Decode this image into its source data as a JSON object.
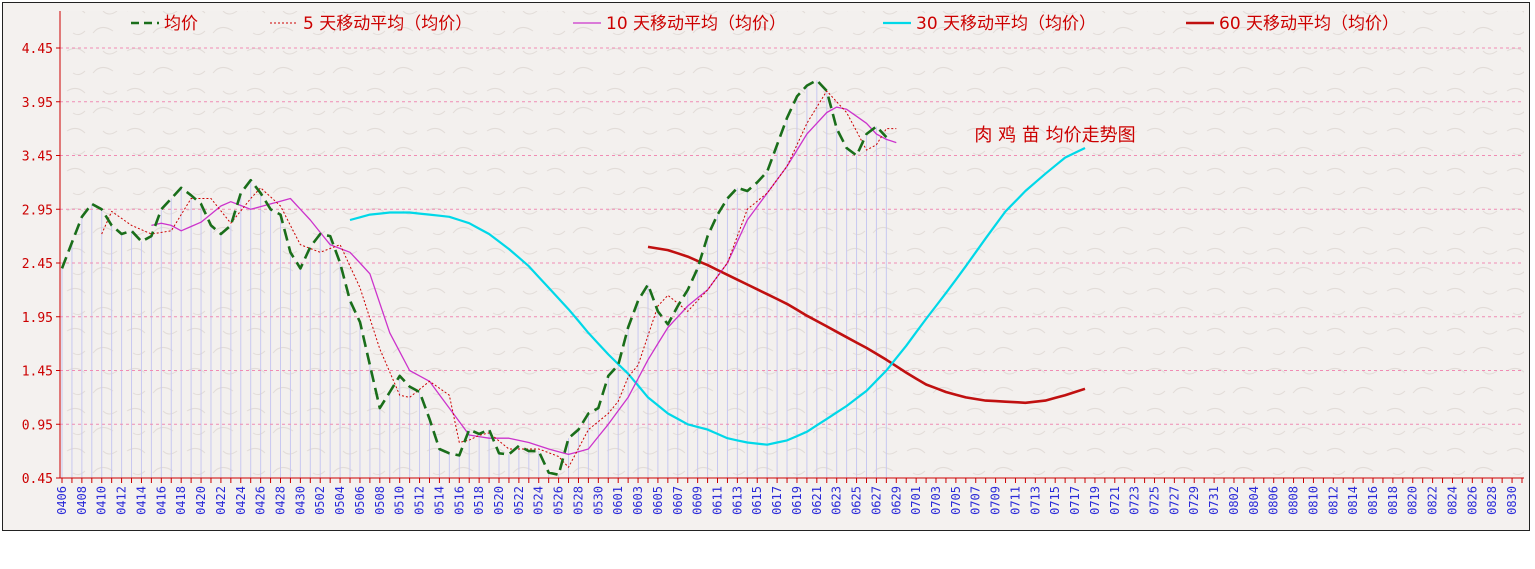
{
  "chart_data": {
    "type": "line",
    "title": "肉 鸡 苗 均价走势图",
    "ylim": [
      0.45,
      4.45
    ],
    "yticks": [
      "0.45",
      "0.95",
      "1.45",
      "1.95",
      "2.45",
      "2.95",
      "3.45",
      "3.95",
      "4.45"
    ],
    "grid": true,
    "legend_position": "top",
    "x_labels": [
      "0406",
      "0408",
      "0410",
      "0412",
      "0414",
      "0416",
      "0418",
      "0420",
      "0422",
      "0424",
      "0426",
      "0428",
      "0430",
      "0502",
      "0504",
      "0506",
      "0508",
      "0510",
      "0512",
      "0514",
      "0516",
      "0518",
      "0520",
      "0522",
      "0524",
      "0526",
      "0528",
      "0530",
      "0601",
      "0603",
      "0605",
      "0607",
      "0609",
      "0611",
      "0613",
      "0615",
      "0617",
      "0619",
      "0621",
      "0623",
      "0625",
      "0627",
      "0629",
      "0701",
      "0703",
      "0705",
      "0707",
      "0709",
      "0711",
      "0713",
      "0715",
      "0717",
      "0719",
      "0721",
      "0723",
      "0725",
      "0727",
      "0729",
      "0731",
      "0802",
      "0804",
      "0806",
      "0808",
      "0810",
      "0812",
      "0814",
      "0816",
      "0818",
      "0820",
      "0822",
      "0824",
      "0826",
      "0828",
      "0830"
    ],
    "series": [
      {
        "name": "均价",
        "color": "#1a6e1a",
        "style": "dash",
        "anchors": [
          [
            0,
            2.4
          ],
          [
            2,
            2.88
          ],
          [
            3,
            3.0
          ],
          [
            4,
            2.95
          ],
          [
            5,
            2.8
          ],
          [
            6,
            2.72
          ],
          [
            7,
            2.75
          ],
          [
            8,
            2.65
          ],
          [
            9,
            2.7
          ],
          [
            10,
            2.95
          ],
          [
            11,
            3.05
          ],
          [
            12,
            3.15
          ],
          [
            13,
            3.08
          ],
          [
            14,
            3.0
          ],
          [
            15,
            2.8
          ],
          [
            16,
            2.72
          ],
          [
            17,
            2.8
          ],
          [
            18,
            3.1
          ],
          [
            19,
            3.22
          ],
          [
            20,
            3.1
          ],
          [
            21,
            2.95
          ],
          [
            22,
            2.9
          ],
          [
            23,
            2.55
          ],
          [
            24,
            2.4
          ],
          [
            25,
            2.6
          ],
          [
            26,
            2.72
          ],
          [
            27,
            2.7
          ],
          [
            28,
            2.45
          ],
          [
            29,
            2.1
          ],
          [
            30,
            1.9
          ],
          [
            31,
            1.5
          ],
          [
            32,
            1.1
          ],
          [
            33,
            1.25
          ],
          [
            34,
            1.4
          ],
          [
            35,
            1.3
          ],
          [
            36,
            1.25
          ],
          [
            37,
            1.0
          ],
          [
            38,
            0.72
          ],
          [
            39,
            0.68
          ],
          [
            40,
            0.66
          ],
          [
            41,
            0.9
          ],
          [
            42,
            0.86
          ],
          [
            43,
            0.9
          ],
          [
            44,
            0.68
          ],
          [
            45,
            0.67
          ],
          [
            46,
            0.75
          ],
          [
            47,
            0.7
          ],
          [
            48,
            0.7
          ],
          [
            49,
            0.5
          ],
          [
            50,
            0.48
          ],
          [
            51,
            0.82
          ],
          [
            52,
            0.9
          ],
          [
            53,
            1.05
          ],
          [
            54,
            1.1
          ],
          [
            55,
            1.4
          ],
          [
            56,
            1.5
          ],
          [
            57,
            1.85
          ],
          [
            58,
            2.1
          ],
          [
            59,
            2.25
          ],
          [
            60,
            2.0
          ],
          [
            61,
            1.88
          ],
          [
            62,
            2.05
          ],
          [
            63,
            2.2
          ],
          [
            64,
            2.4
          ],
          [
            65,
            2.7
          ],
          [
            66,
            2.9
          ],
          [
            67,
            3.05
          ],
          [
            68,
            3.15
          ],
          [
            69,
            3.12
          ],
          [
            70,
            3.2
          ],
          [
            71,
            3.3
          ],
          [
            72,
            3.55
          ],
          [
            73,
            3.8
          ],
          [
            74,
            4.0
          ],
          [
            75,
            4.1
          ],
          [
            76,
            4.15
          ],
          [
            77,
            4.05
          ],
          [
            78,
            3.7
          ],
          [
            79,
            3.52
          ],
          [
            80,
            3.45
          ],
          [
            81,
            3.65
          ],
          [
            82,
            3.72
          ],
          [
            83,
            3.62
          ]
        ]
      },
      {
        "name": "5 天移动平均（均价）",
        "color": "#cc0000",
        "style": "dot",
        "anchors": [
          [
            4,
            2.72
          ],
          [
            5,
            2.93
          ],
          [
            7,
            2.8
          ],
          [
            9,
            2.72
          ],
          [
            11,
            2.75
          ],
          [
            13,
            3.05
          ],
          [
            15,
            3.05
          ],
          [
            17,
            2.82
          ],
          [
            19,
            3.05
          ],
          [
            20,
            3.15
          ],
          [
            22,
            2.98
          ],
          [
            24,
            2.62
          ],
          [
            26,
            2.55
          ],
          [
            28,
            2.62
          ],
          [
            30,
            2.22
          ],
          [
            32,
            1.65
          ],
          [
            34,
            1.22
          ],
          [
            35,
            1.2
          ],
          [
            37,
            1.35
          ],
          [
            39,
            1.22
          ],
          [
            40,
            0.78
          ],
          [
            43,
            0.87
          ],
          [
            45,
            0.72
          ],
          [
            48,
            0.72
          ],
          [
            50,
            0.65
          ],
          [
            51,
            0.55
          ],
          [
            53,
            0.9
          ],
          [
            55,
            1.05
          ],
          [
            58,
            1.5
          ],
          [
            60,
            2.05
          ],
          [
            61,
            2.15
          ],
          [
            63,
            2.0
          ],
          [
            65,
            2.2
          ],
          [
            67,
            2.45
          ],
          [
            69,
            2.95
          ],
          [
            71,
            3.1
          ],
          [
            73,
            3.35
          ],
          [
            75,
            3.75
          ],
          [
            77,
            4.05
          ],
          [
            79,
            3.85
          ],
          [
            81,
            3.5
          ],
          [
            82,
            3.55
          ],
          [
            83,
            3.7
          ],
          [
            84,
            3.7
          ]
        ]
      },
      {
        "name": "10 天移动平均（均价）",
        "color": "#cc33cc",
        "style": "solid",
        "anchors": [
          [
            9,
            2.8
          ],
          [
            10,
            2.82
          ],
          [
            11,
            2.8
          ],
          [
            12,
            2.75
          ],
          [
            14,
            2.83
          ],
          [
            16,
            2.98
          ],
          [
            17,
            3.02
          ],
          [
            19,
            2.95
          ],
          [
            21,
            3.0
          ],
          [
            23,
            3.05
          ],
          [
            25,
            2.85
          ],
          [
            27,
            2.62
          ],
          [
            29,
            2.55
          ],
          [
            31,
            2.35
          ],
          [
            33,
            1.8
          ],
          [
            35,
            1.45
          ],
          [
            37,
            1.35
          ],
          [
            39,
            1.1
          ],
          [
            41,
            0.85
          ],
          [
            43,
            0.82
          ],
          [
            45,
            0.82
          ],
          [
            47,
            0.78
          ],
          [
            49,
            0.72
          ],
          [
            51,
            0.67
          ],
          [
            53,
            0.72
          ],
          [
            55,
            0.95
          ],
          [
            57,
            1.2
          ],
          [
            59,
            1.55
          ],
          [
            61,
            1.85
          ],
          [
            63,
            2.05
          ],
          [
            65,
            2.2
          ],
          [
            67,
            2.45
          ],
          [
            69,
            2.85
          ],
          [
            71,
            3.1
          ],
          [
            73,
            3.35
          ],
          [
            75,
            3.65
          ],
          [
            77,
            3.85
          ],
          [
            78,
            3.9
          ],
          [
            79,
            3.88
          ],
          [
            81,
            3.75
          ],
          [
            82,
            3.65
          ],
          [
            83,
            3.6
          ],
          [
            84,
            3.57
          ]
        ]
      },
      {
        "name": "30 天移动平均（均价）",
        "color": "#00d8e8",
        "style": "solid",
        "anchors": [
          [
            29,
            2.85
          ],
          [
            31,
            2.9
          ],
          [
            33,
            2.92
          ],
          [
            35,
            2.92
          ],
          [
            37,
            2.9
          ],
          [
            39,
            2.88
          ],
          [
            41,
            2.82
          ],
          [
            43,
            2.72
          ],
          [
            45,
            2.58
          ],
          [
            47,
            2.42
          ],
          [
            49,
            2.22
          ],
          [
            51,
            2.02
          ],
          [
            53,
            1.8
          ],
          [
            55,
            1.6
          ],
          [
            57,
            1.42
          ],
          [
            59,
            1.2
          ],
          [
            61,
            1.05
          ],
          [
            63,
            0.95
          ],
          [
            65,
            0.9
          ],
          [
            67,
            0.82
          ],
          [
            69,
            0.78
          ],
          [
            71,
            0.76
          ],
          [
            73,
            0.8
          ],
          [
            75,
            0.88
          ],
          [
            77,
            1.0
          ],
          [
            79,
            1.12
          ],
          [
            81,
            1.26
          ],
          [
            83,
            1.45
          ],
          [
            85,
            1.68
          ],
          [
            87,
            1.93
          ],
          [
            89,
            2.17
          ],
          [
            91,
            2.42
          ],
          [
            93,
            2.68
          ],
          [
            95,
            2.93
          ],
          [
            97,
            3.12
          ],
          [
            99,
            3.28
          ],
          [
            101,
            3.43
          ],
          [
            103,
            3.52
          ]
        ]
      },
      {
        "name": "60 天移动平均（均价）",
        "color": "#c01010",
        "style": "solid",
        "anchors": [
          [
            59,
            2.6
          ],
          [
            61,
            2.57
          ],
          [
            63,
            2.51
          ],
          [
            65,
            2.43
          ],
          [
            67,
            2.34
          ],
          [
            69,
            2.25
          ],
          [
            71,
            2.16
          ],
          [
            73,
            2.07
          ],
          [
            75,
            1.96
          ],
          [
            77,
            1.86
          ],
          [
            79,
            1.76
          ],
          [
            81,
            1.66
          ],
          [
            83,
            1.55
          ],
          [
            85,
            1.43
          ],
          [
            87,
            1.32
          ],
          [
            89,
            1.25
          ],
          [
            91,
            1.2
          ],
          [
            93,
            1.17
          ],
          [
            95,
            1.16
          ],
          [
            97,
            1.15
          ],
          [
            99,
            1.17
          ],
          [
            101,
            1.22
          ],
          [
            103,
            1.28
          ]
        ]
      }
    ]
  }
}
